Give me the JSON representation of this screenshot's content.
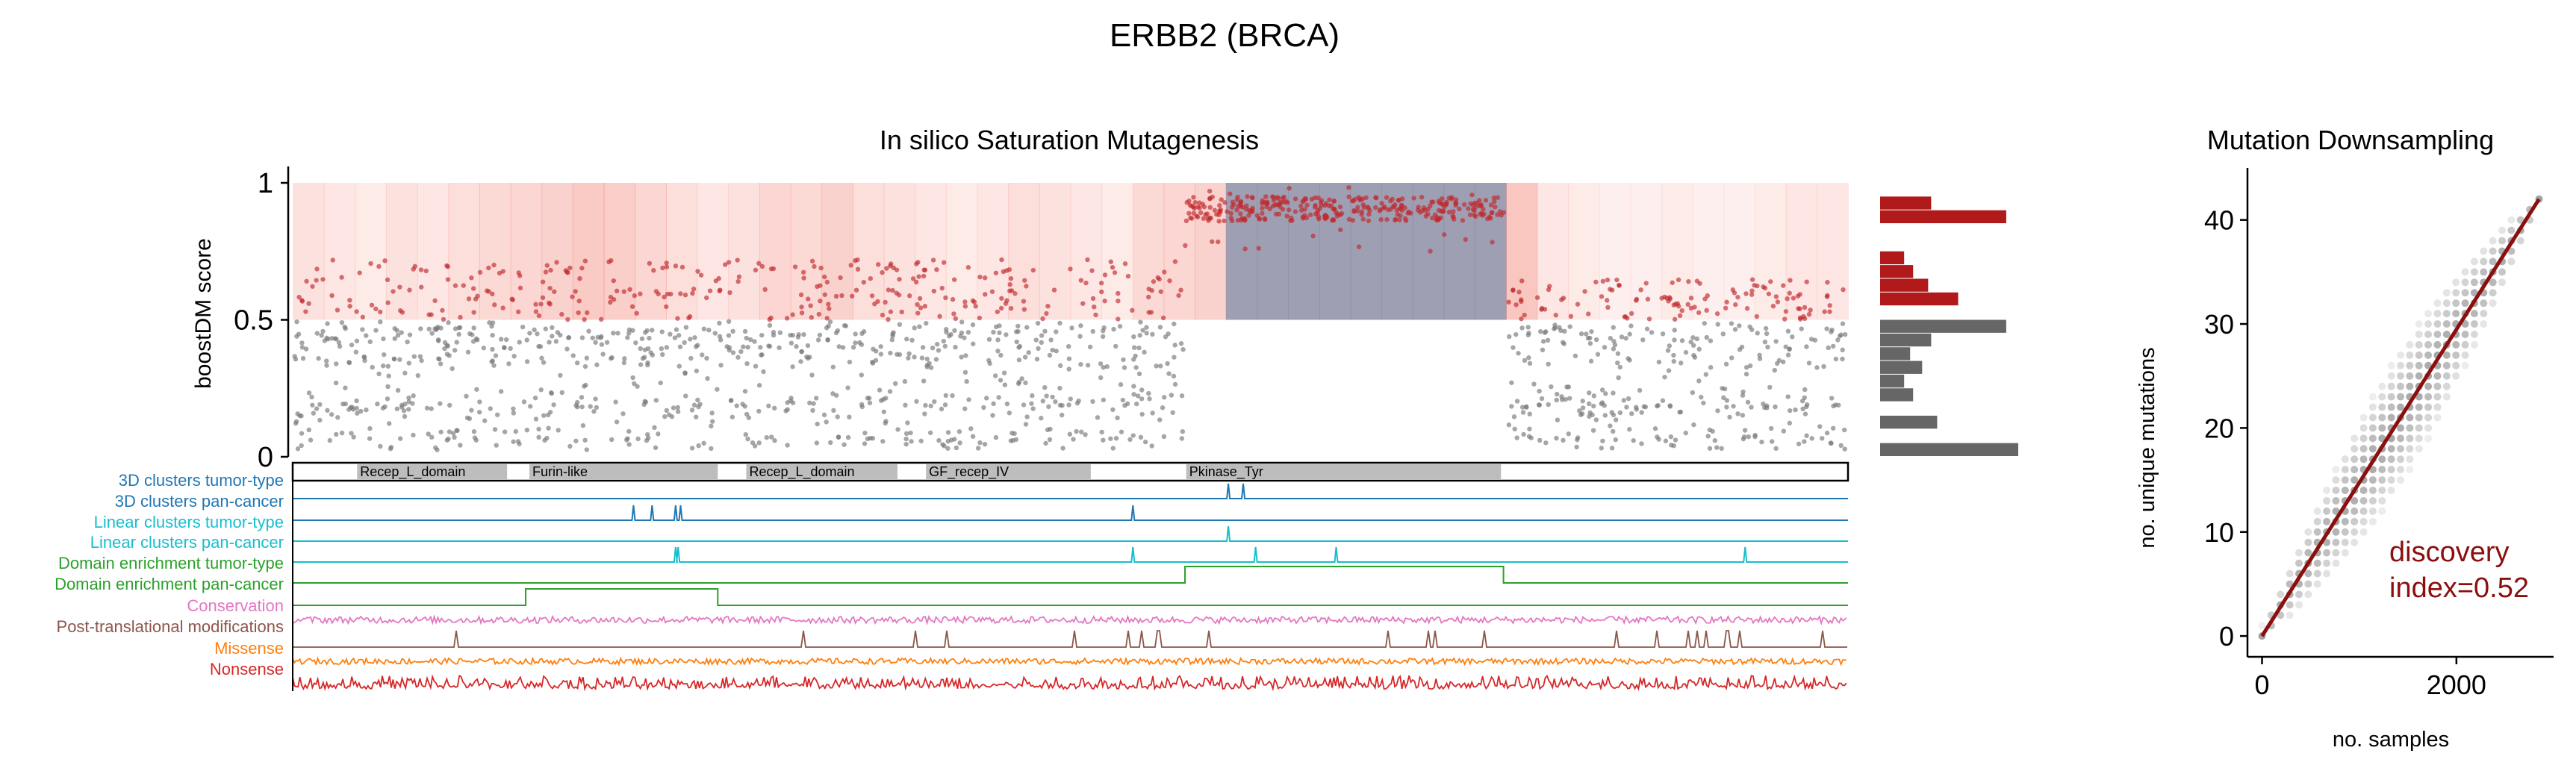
{
  "figure": {
    "title": "ERBB2 (BRCA)"
  },
  "chart_data": [
    {
      "id": "saturation",
      "type": "scatter",
      "title": "In silico Saturation Mutagenesis",
      "xlabel": "",
      "ylabel": "boostDM score",
      "ylim": [
        0,
        1
      ],
      "yticks": [
        "0",
        "0.5",
        "1"
      ],
      "protein_length": 1255,
      "threshold": 0.5,
      "colors": {
        "driver": "#c0282c",
        "passenger": "#777777",
        "heat": "#f06a5a",
        "heat_hot": "#8e8ea6"
      },
      "points_driver": {
        "region": [
          0,
          1255
        ],
        "typical_score": [
          0.5,
          0.7
        ],
        "note_only": "see series"
      },
      "series": [
        {
          "name": "",
          "band": "driver",
          "x_range": [
            1,
            720
          ],
          "score_range": [
            0.5,
            0.72
          ],
          "density": 0.33
        },
        {
          "name": "",
          "band": "driver",
          "x_range": [
            720,
            980
          ],
          "score_range": [
            0.86,
            0.95
          ],
          "density": 1.0
        },
        {
          "name": "",
          "band": "driver",
          "x_range": [
            980,
            1255
          ],
          "score_range": [
            0.5,
            0.65
          ],
          "density": 0.33
        },
        {
          "name": "",
          "band": "passenger",
          "x_range": [
            1,
            720
          ],
          "score_range": [
            0.05,
            0.5
          ],
          "density": 0.85
        },
        {
          "name": "",
          "band": "passenger",
          "x_range": [
            980,
            1255
          ],
          "score_range": [
            0.05,
            0.5
          ],
          "density": 0.85
        }
      ],
      "heat_profile": [
        0.35,
        0.3,
        0.25,
        0.35,
        0.3,
        0.4,
        0.45,
        0.5,
        0.55,
        0.65,
        0.6,
        0.5,
        0.4,
        0.3,
        0.35,
        0.5,
        0.45,
        0.55,
        0.4,
        0.35,
        0.3,
        0.25,
        0.3,
        0.4,
        0.35,
        0.3,
        0.25,
        0.45,
        0.5,
        0.55,
        0.95,
        0.9,
        0.9,
        0.85,
        0.9,
        0.9,
        0.92,
        0.9,
        0.95,
        0.7,
        0.3,
        0.25,
        0.2,
        0.2,
        0.25,
        0.2,
        0.2,
        0.25,
        0.3,
        0.3
      ],
      "histogram": {
        "bins": [
          0.0,
          0.05,
          0.1,
          0.15,
          0.2,
          0.25,
          0.3,
          0.35,
          0.4,
          0.45,
          0.5,
          0.55,
          0.6,
          0.65,
          0.7,
          0.75,
          0.8,
          0.85,
          0.9,
          0.95
        ],
        "counts": [
          230,
          0,
          95,
          0,
          55,
          40,
          70,
          50,
          85,
          210,
          0,
          130,
          80,
          55,
          40,
          0,
          0,
          210,
          85,
          0
        ],
        "colors_by_band": {
          "below": "#666666",
          "above": "#b01a1a"
        }
      }
    },
    {
      "id": "tracks",
      "type": "table",
      "domains": [
        {
          "name": "Recep_L_domain",
          "start": 52,
          "end": 173
        },
        {
          "name": "Furin-like",
          "start": 191,
          "end": 343
        },
        {
          "name": "Recep_L_domain",
          "start": 366,
          "end": 488
        },
        {
          "name": "GF_recep_IV",
          "start": 511,
          "end": 644
        },
        {
          "name": "Pkinase_Tyr",
          "start": 721,
          "end": 975
        }
      ],
      "track_labels": [
        {
          "label": "3D clusters tumor-type",
          "color": "#1f77b4"
        },
        {
          "label": "3D clusters pan-cancer",
          "color": "#1f77b4"
        },
        {
          "label": "Linear clusters tumor-type",
          "color": "#17becf"
        },
        {
          "label": "Linear clusters pan-cancer",
          "color": "#17becf"
        },
        {
          "label": "Domain enrichment tumor-type",
          "color": "#2ca02c"
        },
        {
          "label": "Domain enrichment pan-cancer",
          "color": "#2ca02c"
        },
        {
          "label": "Conservation",
          "color": "#e377c2"
        },
        {
          "label": "Post-translational modifications",
          "color": "#8c564b"
        },
        {
          "label": "Missense",
          "color": "#ff7f0e"
        },
        {
          "label": "Nonsense",
          "color": "#d62728"
        }
      ],
      "spikes": {
        "3D clusters tumor-type": [
          755,
          767
        ],
        "3D clusters pan-cancer": [
          275,
          290,
          309,
          313,
          678
        ],
        "Linear clusters tumor-type": [
          755
        ],
        "Linear clusters pan-cancer": [
          309,
          311,
          678,
          777,
          842,
          1172
        ],
        "Domain enrichment tumor-type": [
          [
            720,
            977
          ]
        ],
        "Domain enrichment pan-cancer": [
          [
            188,
            343
          ]
        ]
      }
    },
    {
      "id": "downsampling",
      "type": "scatter",
      "title": "Mutation Downsampling",
      "xlabel": "no. samples",
      "ylabel": "no. unique mutations",
      "xlim": [
        -150,
        3000
      ],
      "ylim": [
        -2,
        45
      ],
      "xticks": [
        0,
        2000
      ],
      "yticks": [
        0,
        10,
        20,
        30,
        40
      ],
      "fit_line": {
        "x": [
          0,
          2850
        ],
        "y": [
          0,
          42
        ]
      },
      "annotation": [
        "discovery",
        "index=0.52"
      ],
      "colors": {
        "points": "#555555",
        "line": "#8b0f0f",
        "annotation": "#8b0f0f"
      },
      "sample_steps": 30,
      "max_samples": 2850,
      "max_mutations": 42
    }
  ]
}
